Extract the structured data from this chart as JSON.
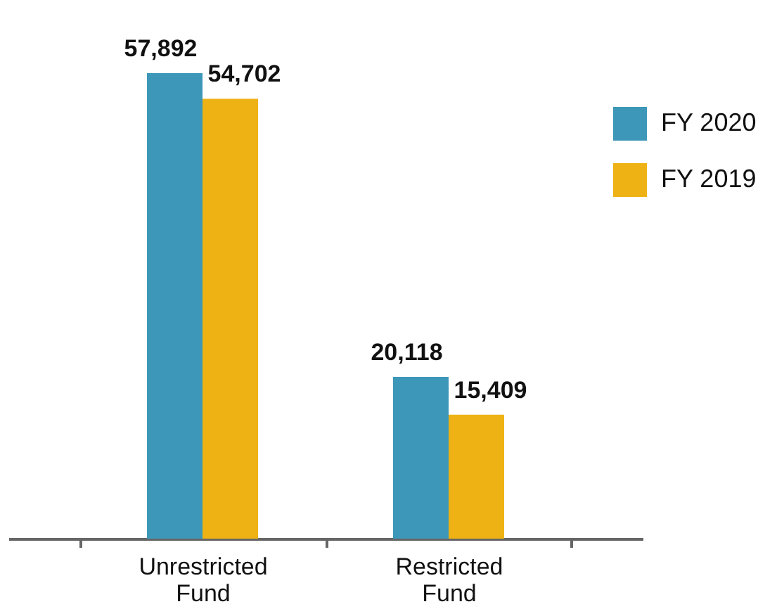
{
  "chart_data": {
    "type": "bar",
    "categories": [
      "Unrestricted Fund",
      "Restricted Fund"
    ],
    "series": [
      {
        "name": "FY 2020",
        "color": "#3d97b8",
        "values": [
          57892,
          20118
        ],
        "value_labels": [
          "57,892",
          "20,118"
        ]
      },
      {
        "name": "FY 2019",
        "color": "#eeb214",
        "values": [
          54702,
          15409
        ],
        "value_labels": [
          "54,702",
          "15,409"
        ]
      }
    ],
    "legend": "top right",
    "tick_labels": "x"
  }
}
